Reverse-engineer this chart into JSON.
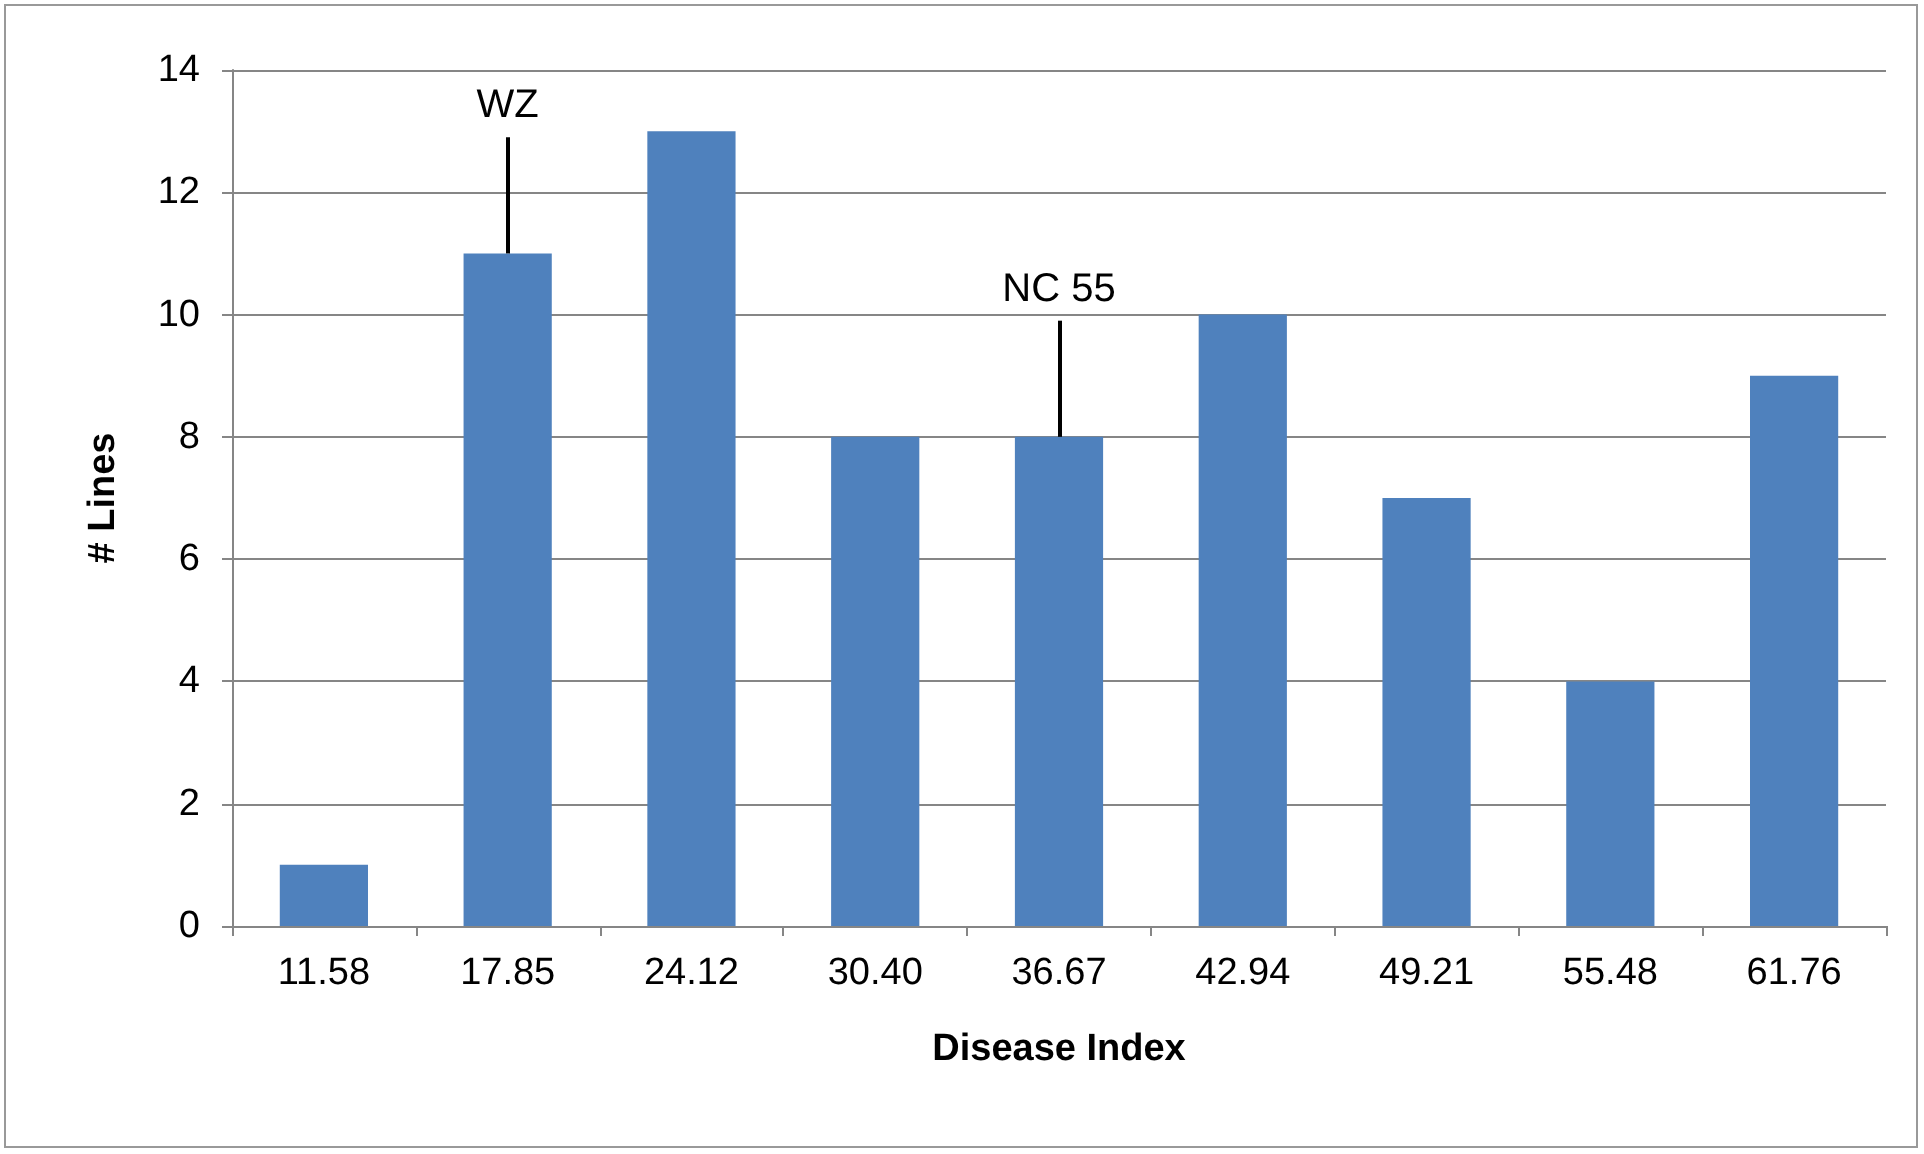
{
  "chart_data": {
    "type": "bar",
    "xlabel": "Disease Index",
    "ylabel": "# Lines",
    "categories": [
      "11.58",
      "17.85",
      "24.12",
      "30.40",
      "36.67",
      "42.94",
      "49.21",
      "55.48",
      "61.76"
    ],
    "values": [
      1,
      11,
      13,
      8,
      8,
      10,
      7,
      4,
      9
    ],
    "color": "#4f81bd",
    "ylim": [
      0,
      14
    ],
    "yticks": [
      0,
      2,
      4,
      6,
      8,
      10,
      12,
      14
    ],
    "grid": "y",
    "annotations": [
      {
        "text": "WZ",
        "x": "17.85",
        "y": 11
      },
      {
        "text": "NC 55",
        "x": "36.67",
        "y": 8
      }
    ]
  }
}
